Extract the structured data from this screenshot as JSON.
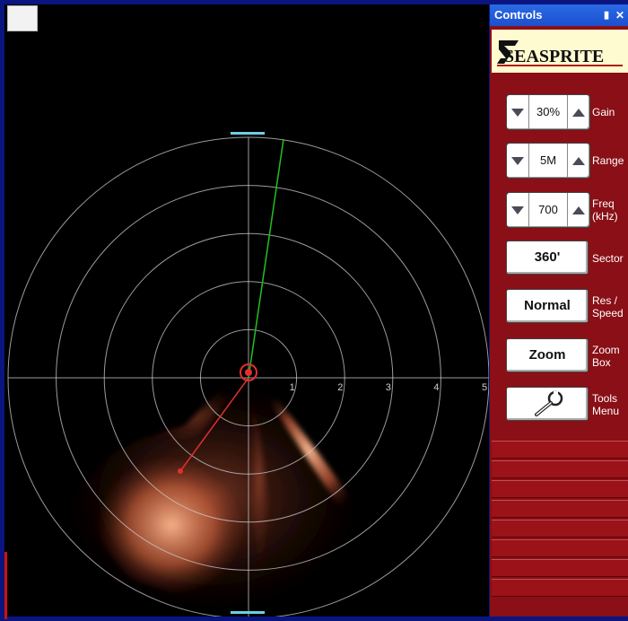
{
  "window": {
    "title": "Controls"
  },
  "icons": {
    "pin": "pin-icon",
    "close": "close-icon",
    "down": "down-arrow-icon",
    "up": "up-arrow-icon",
    "tools": "wrench-icon"
  },
  "logo": {
    "text": "SEASPRITE"
  },
  "controls": {
    "gain": {
      "value": "30%",
      "label": "Gain"
    },
    "range": {
      "value": "5M",
      "label": "Range"
    },
    "freq": {
      "value": "700",
      "label_line1": "Freq",
      "label_line2": "(kHz)"
    },
    "sector": {
      "value": "360'",
      "label": "Sector"
    },
    "res": {
      "value": "Normal",
      "label_line1": "Res /",
      "label_line2": "Speed"
    },
    "zoom": {
      "value": "Zoom",
      "label_line1": "Zoom",
      "label_line2": "Box"
    },
    "tools": {
      "label_line1": "Tools",
      "label_line2": "Menu"
    }
  },
  "sonar": {
    "range_labels": [
      "1",
      "2",
      "3",
      "4",
      "5"
    ],
    "colors": {
      "grid": "#cfcfcf",
      "heading": "#22c022",
      "target": "#e03030",
      "echo": "#c8603c"
    }
  },
  "status_rows": 8
}
